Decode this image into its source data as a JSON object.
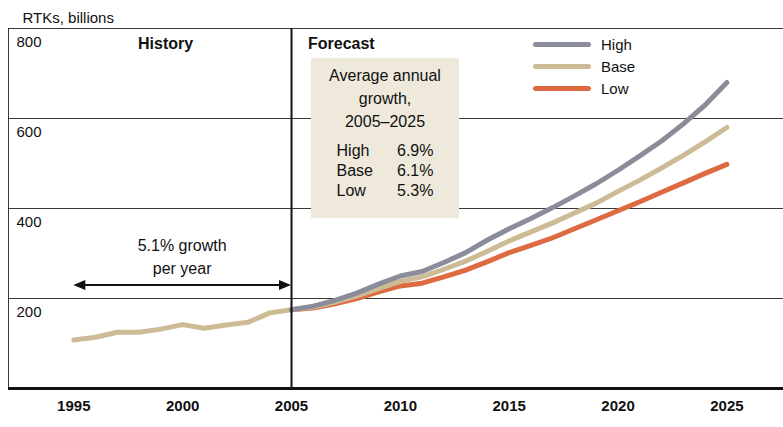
{
  "chart_data": {
    "type": "line",
    "y_label": "RTKs, billions",
    "x": [
      1995,
      1996,
      1997,
      1998,
      1999,
      2000,
      2001,
      2002,
      2003,
      2004,
      2005,
      2006,
      2007,
      2008,
      2009,
      2010,
      2011,
      2012,
      2013,
      2014,
      2015,
      2016,
      2017,
      2018,
      2019,
      2020,
      2021,
      2022,
      2023,
      2024,
      2025
    ],
    "history": {
      "color": "#cdbb96",
      "values": [
        108,
        114,
        125,
        125,
        132,
        142,
        134,
        141,
        147,
        168,
        175,
        null,
        null,
        null,
        null,
        null,
        null,
        null,
        null,
        null,
        null,
        null,
        null,
        null,
        null,
        null,
        null,
        null,
        null,
        null,
        null
      ]
    },
    "series": [
      {
        "name": "High",
        "color": "#8a8d99",
        "values": [
          null,
          null,
          null,
          null,
          null,
          null,
          null,
          null,
          null,
          null,
          175,
          183,
          196,
          212,
          232,
          250,
          260,
          280,
          302,
          330,
          355,
          378,
          402,
          428,
          455,
          485,
          517,
          550,
          588,
          630,
          680
        ]
      },
      {
        "name": "Base",
        "color": "#cdbb96",
        "values": [
          null,
          null,
          null,
          null,
          null,
          null,
          null,
          null,
          null,
          null,
          175,
          181,
          192,
          206,
          222,
          238,
          248,
          265,
          283,
          305,
          328,
          348,
          368,
          390,
          412,
          438,
          463,
          490,
          518,
          548,
          580
        ]
      },
      {
        "name": "Low",
        "color": "#dd6a40",
        "values": [
          null,
          null,
          null,
          null,
          null,
          null,
          null,
          null,
          null,
          null,
          175,
          179,
          188,
          200,
          215,
          228,
          234,
          248,
          263,
          282,
          302,
          318,
          335,
          355,
          375,
          395,
          415,
          436,
          457,
          478,
          498
        ]
      }
    ],
    "xlim": [
      1992,
      2027.6
    ],
    "xticks": [
      1995,
      2000,
      2005,
      2010,
      2015,
      2020,
      2025
    ],
    "ylim": [
      0,
      800
    ],
    "yticks": [
      200,
      400,
      600,
      800
    ],
    "grid": true,
    "legend": "top-right",
    "annotations": {
      "history_label": "History",
      "forecast_label": "Forecast",
      "history_growth": [
        "5.1% growth",
        "per year"
      ],
      "forecast_box": {
        "title": [
          "Average annual",
          "growth,",
          "2005–2025"
        ],
        "rows": [
          [
            "High",
            "6.9%"
          ],
          [
            "Base",
            "6.1%"
          ],
          [
            "Low",
            "5.3%"
          ]
        ]
      }
    }
  }
}
